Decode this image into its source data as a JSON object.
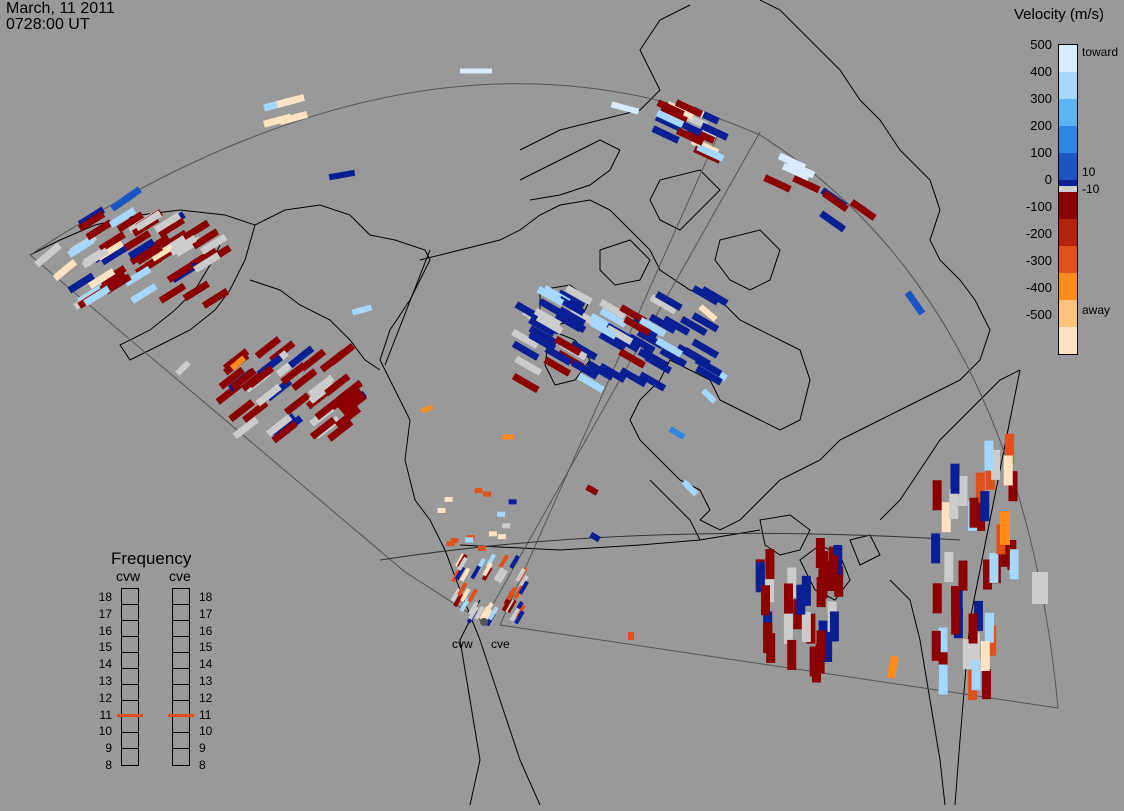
{
  "header": {
    "date": "March, 11 2011",
    "time": "0728:00 UT"
  },
  "legend": {
    "title": "Velocity (m/s)",
    "ticks": [
      "500",
      "400",
      "300",
      "200",
      "100",
      "0",
      "-100",
      "-200",
      "-300",
      "-400",
      "-500"
    ],
    "inner_ticks": [
      "10",
      "-10"
    ],
    "toward_label": "toward",
    "away_label": "away",
    "colors": [
      "#d9ecff",
      "#a6d8ff",
      "#5ab4f5",
      "#2f86e0",
      "#1b55c4",
      "#0a1f94",
      "#cccccc",
      "#8b0000",
      "#b5220a",
      "#e0501a",
      "#ff8c1a",
      "#ffc27a",
      "#ffe3c2"
    ]
  },
  "frequency": {
    "title": "Frequency",
    "radars": [
      {
        "name": "cvw",
        "value_mhz": 11
      },
      {
        "name": "cve",
        "value_mhz": 11
      }
    ],
    "levels": [
      "18",
      "17",
      "16",
      "15",
      "14",
      "13",
      "12",
      "11",
      "10",
      "9",
      "8"
    ],
    "marker_color": "#e0501a"
  },
  "radar_sites": [
    "cvw",
    "cve"
  ],
  "colors": {
    "background": "#999999",
    "coast": "#000000",
    "fov": "#555555"
  }
}
